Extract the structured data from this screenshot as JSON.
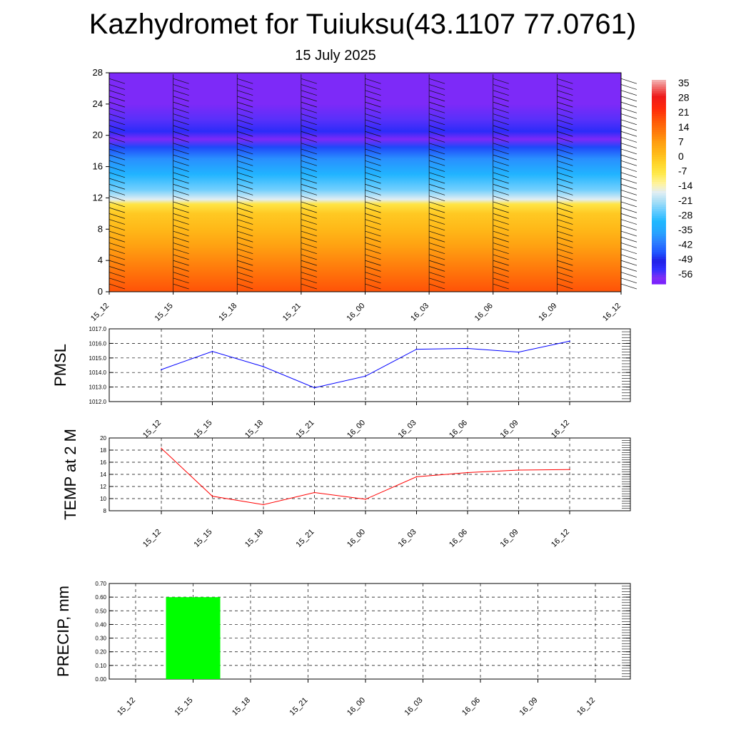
{
  "title": "Kazhydromet for Tuiuksu(43.1107 77.0761)",
  "subtitle": "15 July 2025",
  "chart_data": [
    {
      "type": "heatmap",
      "title": "",
      "x_labels": [
        "15_12",
        "15_15",
        "15_18",
        "15_21",
        "16_00",
        "16_03",
        "16_06",
        "16_09",
        "16_12"
      ],
      "ylim": [
        0,
        28
      ],
      "y_ticks": [
        0,
        4,
        8,
        12,
        16,
        20,
        24,
        28
      ],
      "temperature_by_height": [
        {
          "y": 0,
          "value": 19
        },
        {
          "y": 2,
          "value": 15
        },
        {
          "y": 4,
          "value": 11
        },
        {
          "y": 6,
          "value": 7
        },
        {
          "y": 8,
          "value": 3
        },
        {
          "y": 10,
          "value": 0
        },
        {
          "y": 11.2,
          "value": -6
        },
        {
          "y": 11.8,
          "value": -16
        },
        {
          "y": 13,
          "value": -24
        },
        {
          "y": 15,
          "value": -31
        },
        {
          "y": 17,
          "value": -38
        },
        {
          "y": 18.5,
          "value": -46
        },
        {
          "y": 19.5,
          "value": -58
        },
        {
          "y": 20.5,
          "value": -52
        },
        {
          "y": 22,
          "value": -55
        },
        {
          "y": 24,
          "value": -58
        },
        {
          "y": 28,
          "value": -58
        }
      ],
      "colorbar": {
        "labels": [
          "35",
          "28",
          "21",
          "14",
          "7",
          "0",
          "-7",
          "-14",
          "-21",
          "-28",
          "-35",
          "-42",
          "-49",
          "-56"
        ]
      },
      "wind_barbs": true
    },
    {
      "type": "line",
      "ylabel": "PMSL",
      "x": [
        "15_12",
        "15_15",
        "15_18",
        "15_21",
        "16_00",
        "16_03",
        "16_06",
        "16_09",
        "16_12"
      ],
      "series": [
        {
          "values": [
            1014.2,
            1015.45,
            1014.4,
            1012.95,
            1013.75,
            1015.6,
            1015.65,
            1015.4,
            1016.15
          ],
          "color": "#0000ff"
        }
      ],
      "ylim": [
        1012.0,
        1017.0
      ],
      "y_ticks": [
        "1012.0",
        "1013.0",
        "1014.0",
        "1015.0",
        "1016.0",
        "1017.0"
      ],
      "grid": true
    },
    {
      "type": "line",
      "ylabel": "TEMP at 2 M",
      "x": [
        "15_12",
        "15_15",
        "15_18",
        "15_21",
        "16_00",
        "16_03",
        "16_06",
        "16_09",
        "16_12"
      ],
      "series": [
        {
          "values": [
            18.3,
            10.4,
            9.0,
            11.0,
            9.9,
            13.6,
            14.3,
            14.7,
            14.8
          ],
          "color": "#ff0000"
        }
      ],
      "ylim": [
        8,
        20
      ],
      "y_ticks": [
        "8",
        "10",
        "12",
        "14",
        "16",
        "18",
        "20"
      ],
      "grid": true
    },
    {
      "type": "bar",
      "ylabel": "PRECIP, mm",
      "categories": [
        "15_12",
        "15_15",
        "15_18",
        "15_21",
        "16_00",
        "16_03",
        "16_06",
        "16_09",
        "16_12"
      ],
      "values": [
        0,
        0.6,
        0,
        0,
        0,
        0,
        0,
        0,
        0
      ],
      "color": "#00ff00",
      "ylim": [
        0,
        0.7
      ],
      "y_ticks": [
        "0.00",
        "0.10",
        "0.20",
        "0.30",
        "0.40",
        "0.50",
        "0.60",
        "0.70"
      ],
      "grid": true
    }
  ]
}
